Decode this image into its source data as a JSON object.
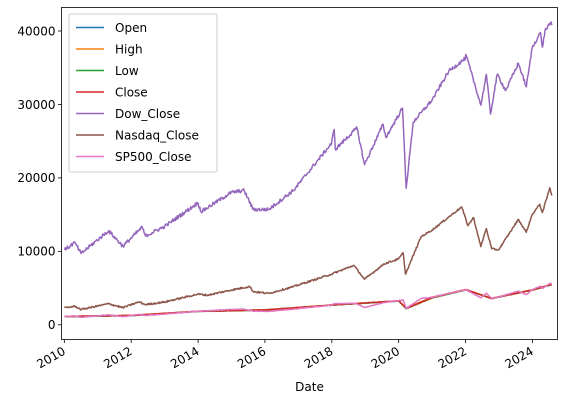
{
  "chart_data": {
    "type": "line",
    "xlabel": "Date",
    "ylabel": "",
    "x_range": [
      "2009-12-01",
      "2024-10-01"
    ],
    "ylim": [
      -2000,
      43200
    ],
    "x_ticks": [
      "2010",
      "2012",
      "2014",
      "2016",
      "2018",
      "2020",
      "2022",
      "2024"
    ],
    "y_ticks": [
      "0",
      "10000",
      "20000",
      "30000",
      "40000"
    ],
    "grid": false,
    "legend_position": "top-left",
    "series": [
      {
        "name": "Open",
        "color": "#1f77b4",
        "points": [
          [
            "2010-01-04",
            1116
          ],
          [
            "2012-01-03",
            1258
          ],
          [
            "2014-01-02",
            1845
          ],
          [
            "2016-01-04",
            2038
          ],
          [
            "2018-01-02",
            2683
          ],
          [
            "2020-01-02",
            3244
          ],
          [
            "2020-03-23",
            2290
          ],
          [
            "2021-01-04",
            3764
          ],
          [
            "2022-01-03",
            4778
          ],
          [
            "2022-10-12",
            3590
          ],
          [
            "2024-01-02",
            4745
          ],
          [
            "2024-07-31",
            5500
          ]
        ]
      },
      {
        "name": "High",
        "color": "#ff7f0e",
        "points": [
          [
            "2010-01-04",
            1133
          ],
          [
            "2012-01-03",
            1284
          ],
          [
            "2014-01-02",
            1845
          ],
          [
            "2016-01-04",
            2038
          ],
          [
            "2018-01-02",
            2695
          ],
          [
            "2020-01-02",
            3258
          ],
          [
            "2020-03-23",
            2300
          ],
          [
            "2021-01-04",
            3769
          ],
          [
            "2022-01-03",
            4796
          ],
          [
            "2022-10-12",
            3630
          ],
          [
            "2024-01-02",
            4754
          ],
          [
            "2024-07-31",
            5550
          ]
        ]
      },
      {
        "name": "Low",
        "color": "#2ca02c",
        "points": [
          [
            "2010-01-04",
            1116
          ],
          [
            "2012-01-03",
            1258
          ],
          [
            "2014-01-02",
            1827
          ],
          [
            "2016-01-04",
            1989
          ],
          [
            "2018-01-02",
            2682
          ],
          [
            "2020-01-02",
            3235
          ],
          [
            "2020-03-23",
            2191
          ],
          [
            "2021-01-04",
            3662
          ],
          [
            "2022-01-03",
            4758
          ],
          [
            "2022-10-12",
            3577
          ],
          [
            "2024-01-02",
            4722
          ],
          [
            "2024-07-31",
            5480
          ]
        ]
      },
      {
        "name": "Close",
        "color": "#d62728",
        "points": [
          [
            "2010-01-04",
            1133
          ],
          [
            "2012-01-03",
            1277
          ],
          [
            "2014-01-02",
            1832
          ],
          [
            "2016-01-04",
            2012
          ],
          [
            "2018-01-02",
            2695
          ],
          [
            "2020-01-02",
            3258
          ],
          [
            "2020-03-23",
            2237
          ],
          [
            "2021-01-04",
            3701
          ],
          [
            "2022-01-03",
            4797
          ],
          [
            "2022-10-12",
            3577
          ],
          [
            "2024-01-02",
            4743
          ],
          [
            "2024-07-31",
            5522
          ]
        ]
      },
      {
        "name": "Dow_Close",
        "color": "#9467bd",
        "points": [
          [
            "2010-01-04",
            10200
          ],
          [
            "2010-04-26",
            11200
          ],
          [
            "2010-07-02",
            9700
          ],
          [
            "2011-04-29",
            12800
          ],
          [
            "2011-10-03",
            10700
          ],
          [
            "2012-05-01",
            13300
          ],
          [
            "2012-06-04",
            12100
          ],
          [
            "2013-01-02",
            13400
          ],
          [
            "2013-12-31",
            16600
          ],
          [
            "2014-02-03",
            15400
          ],
          [
            "2014-12-26",
            18000
          ],
          [
            "2015-05-19",
            18300
          ],
          [
            "2015-08-25",
            15700
          ],
          [
            "2016-02-11",
            15700
          ],
          [
            "2016-11-08",
            18300
          ],
          [
            "2017-12-29",
            24700
          ],
          [
            "2018-01-26",
            26600
          ],
          [
            "2018-02-08",
            23900
          ],
          [
            "2018-10-03",
            26800
          ],
          [
            "2018-12-24",
            21800
          ],
          [
            "2019-07-15",
            27300
          ],
          [
            "2019-08-14",
            25500
          ],
          [
            "2020-02-12",
            29500
          ],
          [
            "2020-03-23",
            18600
          ],
          [
            "2020-06-08",
            27600
          ],
          [
            "2020-12-31",
            30600
          ],
          [
            "2021-06-30",
            34500
          ],
          [
            "2021-12-31",
            36300
          ],
          [
            "2022-01-04",
            36800
          ],
          [
            "2022-06-17",
            29900
          ],
          [
            "2022-08-16",
            34100
          ],
          [
            "2022-09-30",
            28700
          ],
          [
            "2022-12-13",
            34100
          ],
          [
            "2023-03-15",
            31900
          ],
          [
            "2023-07-31",
            35600
          ],
          [
            "2023-10-27",
            32400
          ],
          [
            "2023-12-29",
            37700
          ],
          [
            "2024-03-28",
            39800
          ],
          [
            "2024-04-19",
            37800
          ],
          [
            "2024-05-17",
            40000
          ],
          [
            "2024-07-17",
            41200
          ],
          [
            "2024-07-31",
            40800
          ]
        ]
      },
      {
        "name": "Nasdaq_Close",
        "color": "#8c564b",
        "points": [
          [
            "2010-01-04",
            2300
          ],
          [
            "2010-04-26",
            2530
          ],
          [
            "2010-07-02",
            2090
          ],
          [
            "2011-04-29",
            2870
          ],
          [
            "2011-10-03",
            2340
          ],
          [
            "2012-03-27",
            3120
          ],
          [
            "2012-06-04",
            2750
          ],
          [
            "2013-01-02",
            3110
          ],
          [
            "2013-12-31",
            4180
          ],
          [
            "2014-04-14",
            4030
          ],
          [
            "2014-12-31",
            4740
          ],
          [
            "2015-07-20",
            5220
          ],
          [
            "2015-08-25",
            4520
          ],
          [
            "2016-02-11",
            4270
          ],
          [
            "2016-11-08",
            5200
          ],
          [
            "2017-12-29",
            6900
          ],
          [
            "2018-08-29",
            8100
          ],
          [
            "2018-12-24",
            6200
          ],
          [
            "2019-07-26",
            8300
          ],
          [
            "2019-12-31",
            8970
          ],
          [
            "2020-02-19",
            9800
          ],
          [
            "2020-03-16",
            6900
          ],
          [
            "2020-09-02",
            12000
          ],
          [
            "2020-12-31",
            12900
          ],
          [
            "2021-11-19",
            16050
          ],
          [
            "2022-01-27",
            13500
          ],
          [
            "2022-03-29",
            14600
          ],
          [
            "2022-06-16",
            10650
          ],
          [
            "2022-08-15",
            13100
          ],
          [
            "2022-10-13",
            10350
          ],
          [
            "2022-12-28",
            10200
          ],
          [
            "2023-07-31",
            14350
          ],
          [
            "2023-10-26",
            12600
          ],
          [
            "2023-12-29",
            15000
          ],
          [
            "2024-03-21",
            16400
          ],
          [
            "2024-04-19",
            15280
          ],
          [
            "2024-07-10",
            18650
          ],
          [
            "2024-07-31",
            17600
          ]
        ]
      },
      {
        "name": "SP500_Close",
        "color": "#e377c2",
        "points": [
          [
            "2010-01-04",
            1115
          ],
          [
            "2010-04-26",
            1217
          ],
          [
            "2010-07-02",
            1022
          ],
          [
            "2011-04-29",
            1363
          ],
          [
            "2011-10-03",
            1099
          ],
          [
            "2012-04-02",
            1419
          ],
          [
            "2012-06-04",
            1278
          ],
          [
            "2013-01-02",
            1462
          ],
          [
            "2013-12-31",
            1848
          ],
          [
            "2014-12-29",
            2090
          ],
          [
            "2015-05-21",
            2131
          ],
          [
            "2015-08-25",
            1867
          ],
          [
            "2016-02-11",
            1829
          ],
          [
            "2016-11-08",
            2139
          ],
          [
            "2017-12-29",
            2673
          ],
          [
            "2018-01-26",
            2872
          ],
          [
            "2018-09-20",
            2930
          ],
          [
            "2018-12-24",
            2351
          ],
          [
            "2019-07-26",
            3025
          ],
          [
            "2020-02-19",
            3386
          ],
          [
            "2020-03-23",
            2237
          ],
          [
            "2020-09-02",
            3580
          ],
          [
            "2020-12-31",
            3756
          ],
          [
            "2022-01-03",
            4796
          ],
          [
            "2022-06-16",
            3666
          ],
          [
            "2022-08-16",
            4305
          ],
          [
            "2022-10-12",
            3577
          ],
          [
            "2022-12-28",
            3783
          ],
          [
            "2023-07-31",
            4589
          ],
          [
            "2023-10-27",
            4117
          ],
          [
            "2023-12-29",
            4770
          ],
          [
            "2024-03-28",
            5254
          ],
          [
            "2024-04-19",
            4967
          ],
          [
            "2024-07-16",
            5667
          ],
          [
            "2024-07-31",
            5522
          ]
        ]
      }
    ]
  }
}
